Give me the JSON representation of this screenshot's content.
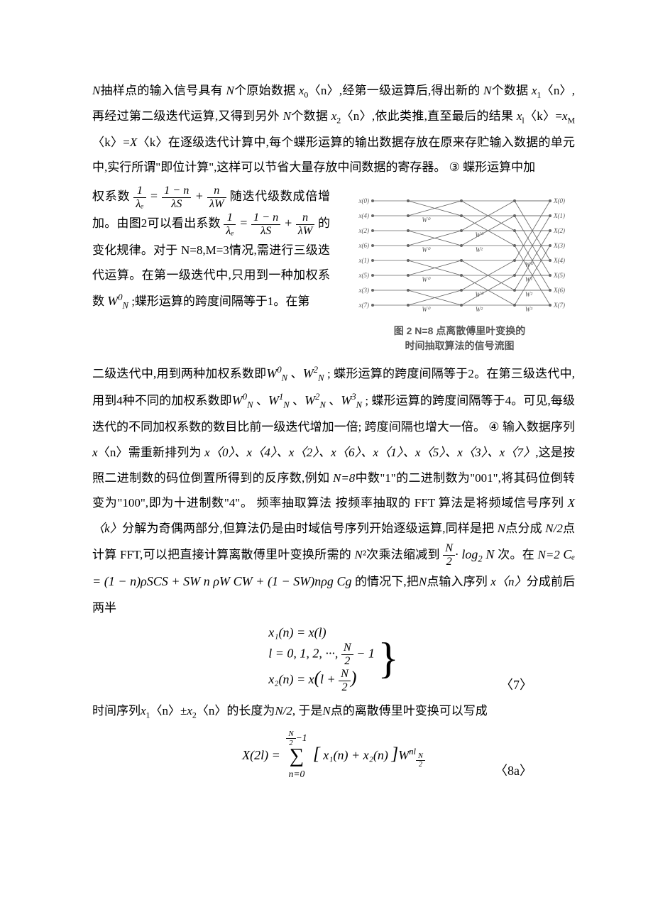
{
  "p1": {
    "text_a": "N",
    "text_b": "抽样点的输入信号具有",
    "text_c": "N",
    "text_d": "个原始数据",
    "text_e": "x",
    "sub_e": "0",
    "text_f": "〈n〉,经第一级运算后,得出新的",
    "text_g": "N",
    "text_h": "个数据",
    "text_i": "x",
    "sub_i": "1",
    "text_j": "〈n〉,再经过第二级迭代运算,又得到另外",
    "text_k": "N",
    "text_l": "个数据",
    "text_m": "x",
    "sub_m": "2",
    "text_n": "〈n〉,依此类推,直至最后的结果",
    "text_o": "x",
    "sub_o": "l",
    "text_p": "〈k〉=",
    "text_q": "x",
    "sub_q": "M",
    "text_r": "〈k〉=",
    "text_s": "X",
    "text_t": "〈k〉在逐级迭代计算中,每个蝶形运算的输出数据存放在原来存贮输入数据的单元中,实行所谓\"即位计算\",这样可以节省大量存放中间数据的寄存器。",
    "circ": "③",
    "tail": "  蝶形运算中加"
  },
  "left": {
    "l1a": "权系数",
    "l1b": "随迭代级数成倍增加。由图2可以看出系数",
    "l2b": "的变化规律。对于",
    "l3": "N=8,M=3情况,需进行三级迭代运算。在第一级迭代中,只用到一种加权系数",
    "l4a": ";蝶形运算的跨度间隔等于1。在第"
  },
  "diagram": {
    "inputs": [
      "x(0)",
      "x(4)",
      "x(2)",
      "x(6)",
      "x(1)",
      "x(5)",
      "x(3)",
      "x(7)"
    ],
    "outputs": [
      "X(0)",
      "X(1)",
      "X(2)",
      "X(3)",
      "X(4)",
      "X(5)",
      "X(6)",
      "X(7)"
    ],
    "caption_l1": "图 2   N=8 点离散傅里叶变换的",
    "caption_l2": "时间抽取算法的信号流图",
    "stroke": "#666666",
    "label_color": "#555555"
  },
  "p2": {
    "a": "二级迭代中,用到两种加权系数即",
    "b": "、",
    "c": ";  蝶形运算的跨度间隔等于2。在第三级迭代中,用到4种不同的加权系数即",
    "d": "、",
    "e": "、",
    "f": "、",
    "g": ";  蝶形运算的跨度间隔等于4。可见,每级迭代的不同加权系数的数目比前一级迭代增加一倍;  跨度间隔也增大一倍。",
    "circ": "④",
    "h": "  输入数据序列",
    "i": "x",
    "j": "〈n〉需重新排列为",
    "seq": "x〈0〉、x〈4〉、x〈2〉、x〈6〉、x〈1〉、x〈5〉、x〈3〉、x〈7〉",
    "k": ",这是按照二进制数的码位倒置所得到的反序数,例如",
    "l": "N=8",
    "m": "中数\"1\"的二进制数为\"001\",将其码位倒转变为\"100\",即为十进制数\"4\"。  频率抽取算法    按频率抽取的 FFT 算法是将频域信号序列",
    "n": "X〈k〉",
    "o": "分解为奇偶两部分,但算法仍是由时域信号序列开始逐级运算,同样是把",
    "p": "N",
    "q": "点分成",
    "r": "N/2",
    "s": "点计算 FFT,可以把直接计算离散傅里叶变换所需的",
    "t": "N",
    "u": "²次乘法缩减到",
    "v": "次。在",
    "w": " N=2 ",
    "x": "的情况下,把",
    "y": "N",
    "z": "点输入序列",
    "aa": "x〈n〉",
    "ab": "分成前后两半"
  },
  "eq7": {
    "line1": "x₁(n)  = x(l)",
    "line2a": "l = 0, 1, 2, ···,",
    "line2_frac_n": "N",
    "line2_frac_d": "2",
    "line2b": "− 1",
    "line3a": "x₂(n) = x",
    "line3b": "l +",
    "line3_frac_n": "N",
    "line3_frac_d": "2",
    "num": "〈7〉"
  },
  "p3": {
    "a": "时间序列",
    "b": "x",
    "sub_b": "1",
    "c": "〈n〉±",
    "d": "x",
    "sub_d": "2",
    "e": "〈n〉的长度为",
    "f": "N/2",
    "g": ",  于是",
    "h": "N",
    "i": "点的离散傅里叶变换可以写成"
  },
  "eq8": {
    "lhs": "X(2l) =",
    "sum_top_n": "N",
    "sum_top_d": "2",
    "sum_top_tail": "−1",
    "sum_bot": "n=0",
    "body_a": "x₁(n) + x₂(n)",
    "w": "W",
    "w_sub_n": "N",
    "w_sub_d": "2",
    "w_sup": "nl",
    "num": "〈8a〉"
  },
  "frac_lambda": {
    "n1": "1",
    "d1": "λₑ",
    "n2": "1 − n",
    "d2": "λS",
    "n3": "n",
    "d3": "λW"
  },
  "W": {
    "base": "W",
    "N": "N",
    "e0": "0",
    "e1": "1",
    "e2": "2",
    "e3": "3"
  },
  "logterm": {
    "n": "N",
    "d": "2",
    "op": "· log",
    "b": "2",
    "arg": "N"
  },
  "Ce_eq": {
    "text": "Cₑ = (1 − n)ρSCS + SW n ρW CW + (1 − SW)nρg Cg"
  }
}
